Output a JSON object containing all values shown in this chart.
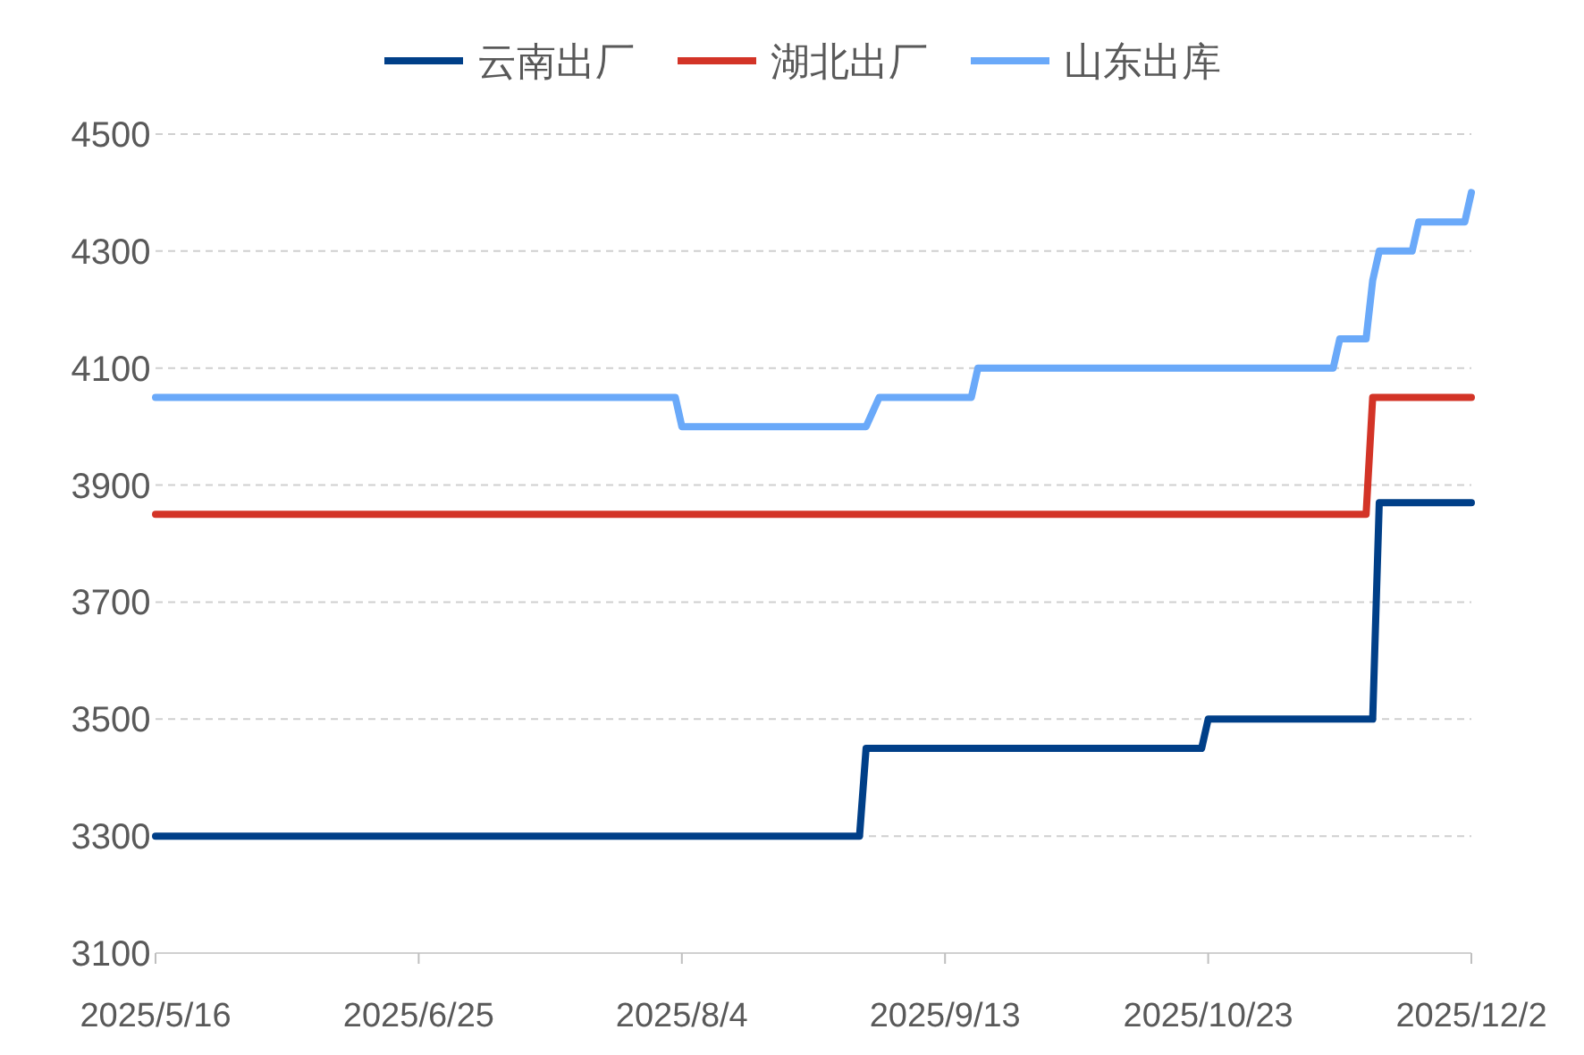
{
  "chart_data": {
    "type": "line",
    "legend": "top",
    "grid": "y",
    "marker": "none",
    "line_style": "solid",
    "xlim": [
      "2025-05-16",
      "2025-12-02"
    ],
    "xticks": [
      {
        "value": "2025-05-16",
        "label": "2025/5/16"
      },
      {
        "value": "2025-06-25",
        "label": "2025/6/25"
      },
      {
        "value": "2025-08-04",
        "label": "2025/8/4"
      },
      {
        "value": "2025-09-13",
        "label": "2025/9/13"
      },
      {
        "value": "2025-10-23",
        "label": "2025/10/23"
      },
      {
        "value": "2025-12-02",
        "label": "2025/12/2"
      }
    ],
    "ylim": [
      3100,
      4500
    ],
    "yticks": [
      3100,
      3300,
      3500,
      3700,
      3900,
      4100,
      4300,
      4500
    ],
    "series": [
      {
        "name": "云南出厂",
        "color": "#003f88",
        "x": [
          "2025-05-16",
          "2025-08-31",
          "2025-09-01",
          "2025-10-22",
          "2025-10-23",
          "2025-11-17",
          "2025-11-18",
          "2025-12-02"
        ],
        "values": [
          3300,
          3300,
          3450,
          3450,
          3500,
          3500,
          3870,
          3870
        ]
      },
      {
        "name": "湖北出厂",
        "color": "#d33427",
        "x": [
          "2025-05-16",
          "2025-11-16",
          "2025-11-17",
          "2025-12-02"
        ],
        "values": [
          3850,
          3850,
          4050,
          4050
        ]
      },
      {
        "name": "山东出库",
        "color": "#6aa9f9",
        "x": [
          "2025-05-16",
          "2025-08-03",
          "2025-08-04",
          "2025-09-01",
          "2025-09-03",
          "2025-09-17",
          "2025-09-18",
          "2025-11-11",
          "2025-11-12",
          "2025-11-16",
          "2025-11-17",
          "2025-11-18",
          "2025-11-23",
          "2025-11-24",
          "2025-12-01",
          "2025-12-02"
        ],
        "values": [
          4050,
          4050,
          4000,
          4000,
          4050,
          4050,
          4100,
          4100,
          4150,
          4150,
          4250,
          4300,
          4300,
          4350,
          4350,
          4400
        ]
      }
    ]
  }
}
